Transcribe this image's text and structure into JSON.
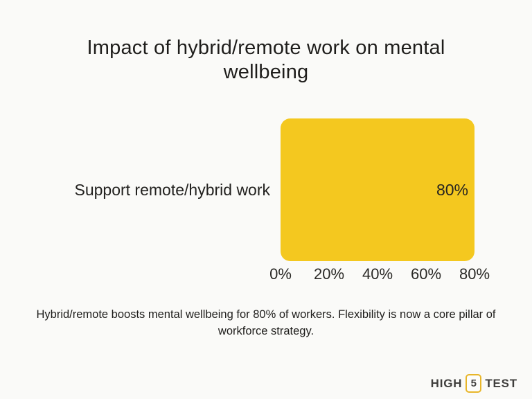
{
  "page": {
    "title": "Impact of hybrid/remote work on mental wellbeing",
    "caption": "Hybrid/remote boosts mental wellbeing for 80% of workers. Flexibility is now a core pillar of workforce strategy.",
    "background_color": "#FAFAF8"
  },
  "chart_data": {
    "type": "bar",
    "orientation": "horizontal",
    "title": "Impact of hybrid/remote work on mental wellbeing",
    "categories": [
      "Support remote/hybrid work"
    ],
    "values": [
      80
    ],
    "value_labels": [
      "80%"
    ],
    "unit": "%",
    "xlim": [
      0,
      80
    ],
    "x_ticks": [
      0,
      20,
      40,
      60,
      80
    ],
    "x_tick_labels": [
      "0%",
      "20%",
      "40%",
      "60%",
      "80%"
    ],
    "xlabel": "",
    "ylabel": "",
    "bar_color": "#F4C81F",
    "grid": false,
    "legend": false,
    "annotation": "Hybrid/remote boosts mental wellbeing for 80% of workers. Flexibility is now a core pillar of workforce strategy."
  },
  "footer": {
    "logo": {
      "left_word": "HIGH",
      "boxed_digit": "5",
      "right_word": "TEST",
      "accent_color": "#E8B62A"
    }
  }
}
